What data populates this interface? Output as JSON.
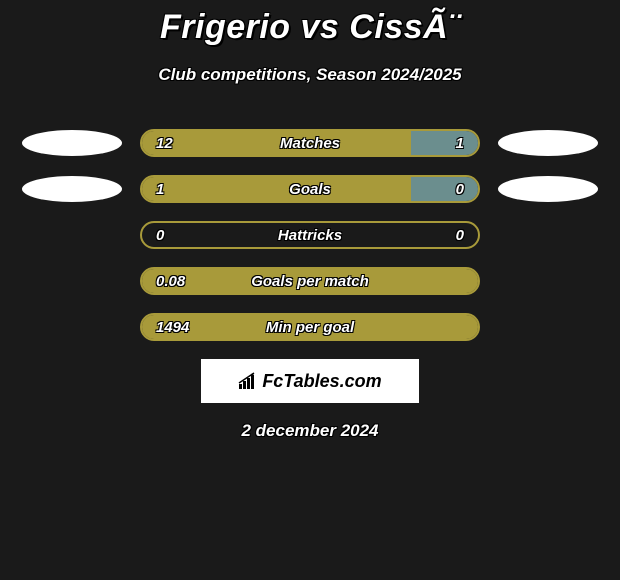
{
  "title": "Frigerio vs CissÃ¨",
  "subtitle": "Club competitions, Season 2024/2025",
  "date": "2 december 2024",
  "brand": "FcTables.com",
  "colors": {
    "left_bar": "#a89a3a",
    "right_bar": "#6b8e8e",
    "border": "#a89a3a",
    "bg": "#1a1a1a",
    "ellipse": "#ffffff",
    "logo_bg": "#ffffff"
  },
  "rows": [
    {
      "label": "Matches",
      "left": "12",
      "right": "1",
      "left_pct": 80,
      "right_pct": 20,
      "show_ellipses": true,
      "ellipse_offset": "0px"
    },
    {
      "label": "Goals",
      "left": "1",
      "right": "0",
      "left_pct": 80,
      "right_pct": 20,
      "show_ellipses": true,
      "ellipse_offset": "20px"
    },
    {
      "label": "Hattricks",
      "left": "0",
      "right": "0",
      "left_pct": 0,
      "right_pct": 0,
      "show_ellipses": false
    },
    {
      "label": "Goals per match",
      "left": "0.08",
      "right": "",
      "left_pct": 100,
      "right_pct": 0,
      "show_ellipses": false
    },
    {
      "label": "Min per goal",
      "left": "1494",
      "right": "",
      "left_pct": 100,
      "right_pct": 0,
      "show_ellipses": false
    }
  ]
}
